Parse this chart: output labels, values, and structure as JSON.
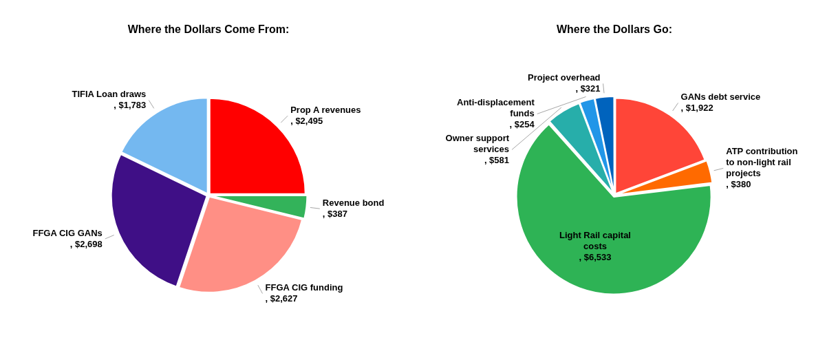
{
  "chart_data": [
    {
      "type": "pie",
      "title": "Where the Dollars Come From:",
      "categories": [
        "Prop A revenues",
        "Revenue bond",
        "FFGA CIG funding",
        "FFGA CIG GANs",
        "TIFIA Loan draws"
      ],
      "values": [
        2495,
        387,
        2627,
        2698,
        1783
      ],
      "colors": [
        "#ff0000",
        "#33b35a",
        "#ff8f85",
        "#3f0f86",
        "#74b8f0"
      ],
      "value_labels": [
        ", $2,495",
        ", $387",
        ", $2,627",
        ", $2,698",
        ", $1,783"
      ]
    },
    {
      "type": "pie",
      "title": "Where the Dollars Go:",
      "categories": [
        "GANs debt service",
        "ATP contribution to non-light rail projects",
        "Light Rail capital costs",
        "Owner support services",
        "Anti-displacement funds",
        "Project overhead"
      ],
      "values": [
        1922,
        380,
        6533,
        581,
        254,
        321
      ],
      "colors": [
        "#ff4538",
        "#ff6a00",
        "#2eb355",
        "#27aeaa",
        "#2196e8",
        "#0063bd"
      ],
      "value_labels": [
        ", $1,922",
        ", $380",
        ", $6,533",
        ", $581",
        ", $254",
        ", $321"
      ]
    }
  ]
}
